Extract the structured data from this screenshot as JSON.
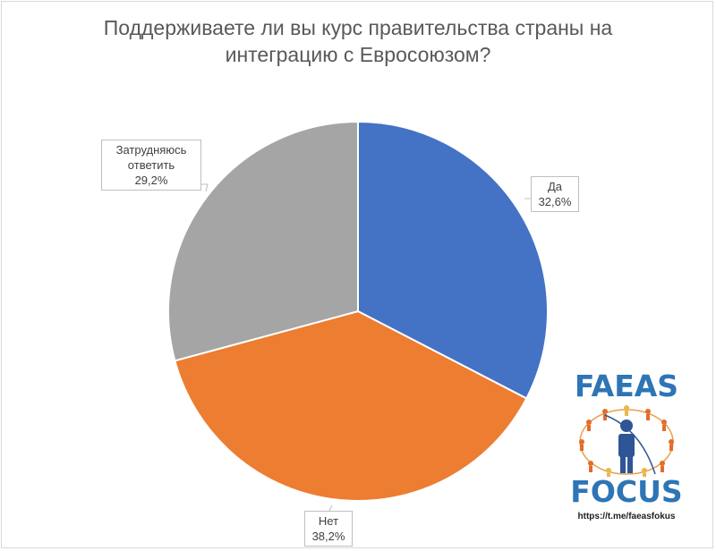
{
  "chart_data": {
    "type": "pie",
    "title": "Поддерживаете ли вы курс правительства страны на интеграцию с Евросоюзом?",
    "slices": [
      {
        "name": "Да",
        "value_label": "32,6%",
        "value": 32.6,
        "color": "#4472c4"
      },
      {
        "name": "Нет",
        "value_label": "38,2%",
        "value": 38.2,
        "color": "#ed7d31"
      },
      {
        "name": "Затрудняюсь ответить",
        "value_label": "29,2%",
        "value": 29.2,
        "color": "#a5a5a5"
      }
    ],
    "labels_line1": [
      "Да",
      "Нет",
      "Затрудняюсь"
    ],
    "labels_line2": [
      "",
      "",
      "ответить"
    ]
  },
  "logo": {
    "top_word": "FAEAS",
    "bottom_word": "FOCUS",
    "url": "https://t.me/faeasfokus"
  }
}
